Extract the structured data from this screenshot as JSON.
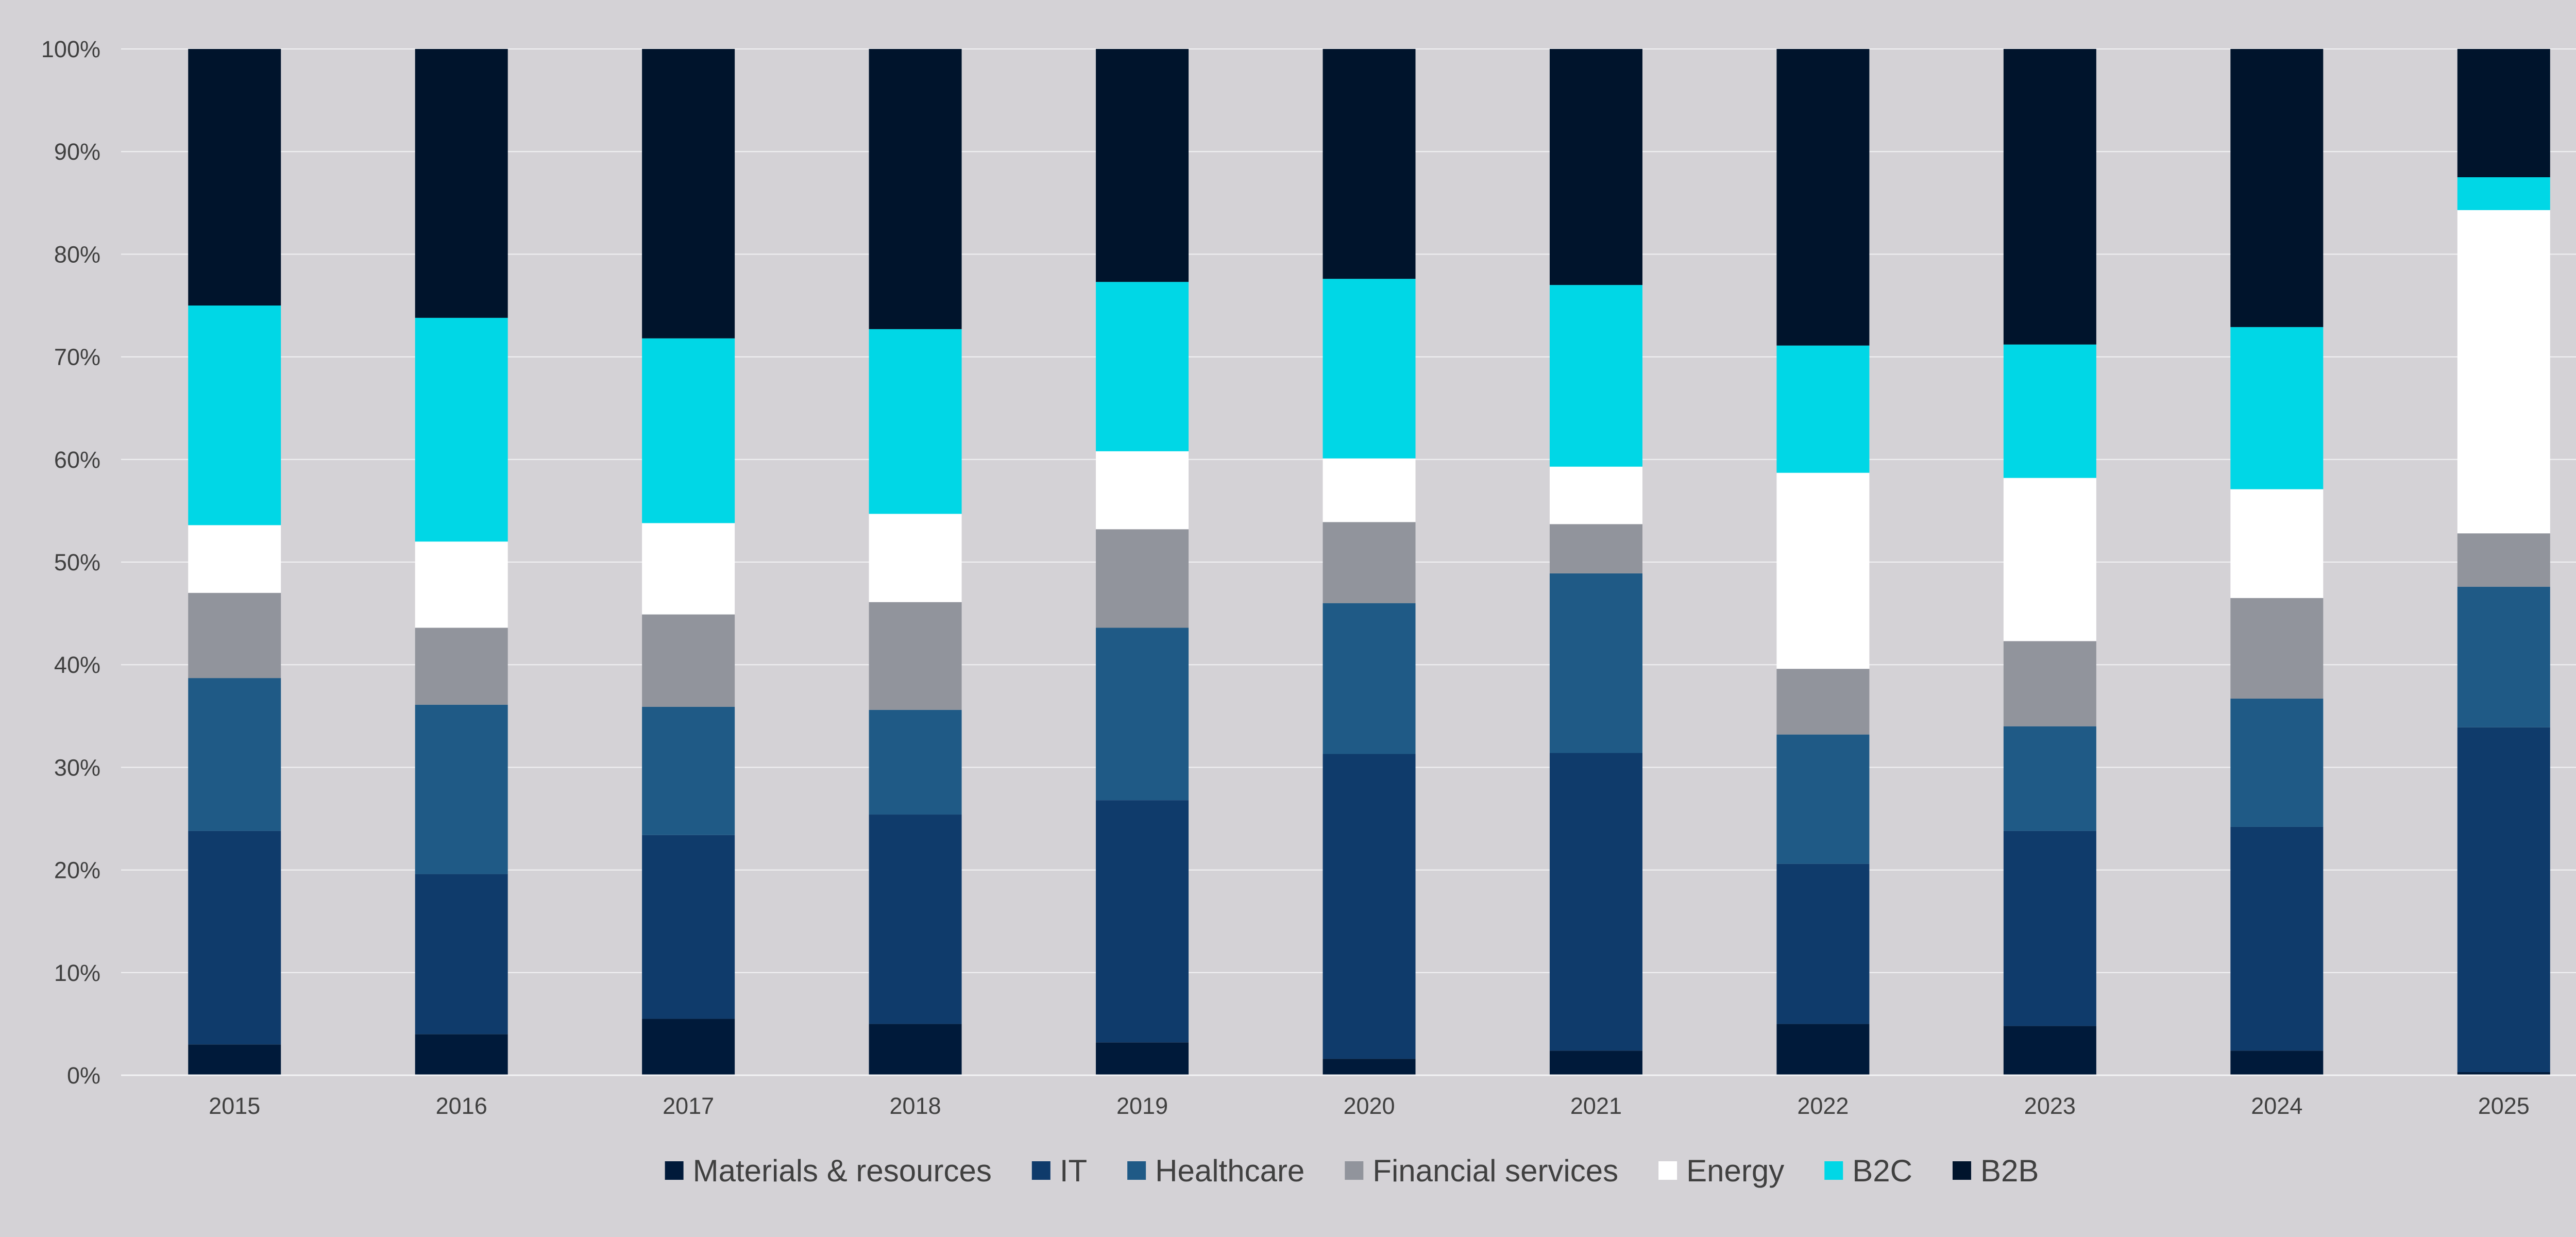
{
  "chart_data": {
    "type": "bar",
    "stacked": true,
    "normalized": true,
    "categories": [
      "2015",
      "2016",
      "2017",
      "2018",
      "2019",
      "2020",
      "2021",
      "2022",
      "2023",
      "2024",
      "2025"
    ],
    "series": [
      {
        "name": "Materials & resources",
        "color": "#001a3a",
        "values": [
          3.0,
          4.0,
          5.5,
          5.0,
          3.2,
          1.6,
          2.4,
          5.0,
          4.8,
          2.4,
          0.3
        ]
      },
      {
        "name": "IT",
        "color": "#0f3b6b",
        "values": [
          20.8,
          15.6,
          17.9,
          20.4,
          23.6,
          29.7,
          29.0,
          15.6,
          19.0,
          21.8,
          33.6
        ]
      },
      {
        "name": "Healthcare",
        "color": "#1f5a86",
        "values": [
          14.9,
          16.5,
          12.5,
          10.2,
          16.8,
          14.7,
          17.5,
          12.6,
          10.2,
          12.5,
          13.7
        ]
      },
      {
        "name": "Financial services",
        "color": "#91949c",
        "values": [
          8.3,
          7.5,
          9.0,
          10.5,
          9.6,
          7.9,
          4.8,
          6.4,
          8.3,
          9.8,
          5.2
        ]
      },
      {
        "name": "Energy",
        "color": "#ffffff",
        "values": [
          6.6,
          8.4,
          8.9,
          8.6,
          7.6,
          6.2,
          5.6,
          19.1,
          15.9,
          10.6,
          31.5
        ]
      },
      {
        "name": "B2C",
        "color": "#00d7e6",
        "values": [
          21.4,
          21.8,
          18.0,
          18.0,
          16.5,
          17.5,
          17.7,
          12.4,
          13.0,
          15.8,
          3.2
        ]
      },
      {
        "name": "B2B",
        "color": "#00142c",
        "values": [
          25.0,
          26.2,
          28.2,
          27.3,
          22.7,
          22.4,
          23.0,
          28.9,
          28.8,
          27.1,
          12.5
        ]
      }
    ],
    "y_ticks": [
      "0%",
      "10%",
      "20%",
      "30%",
      "40%",
      "50%",
      "60%",
      "70%",
      "80%",
      "90%",
      "100%"
    ],
    "ylim": [
      0,
      100
    ],
    "grid": true,
    "legend_position": "bottom"
  }
}
